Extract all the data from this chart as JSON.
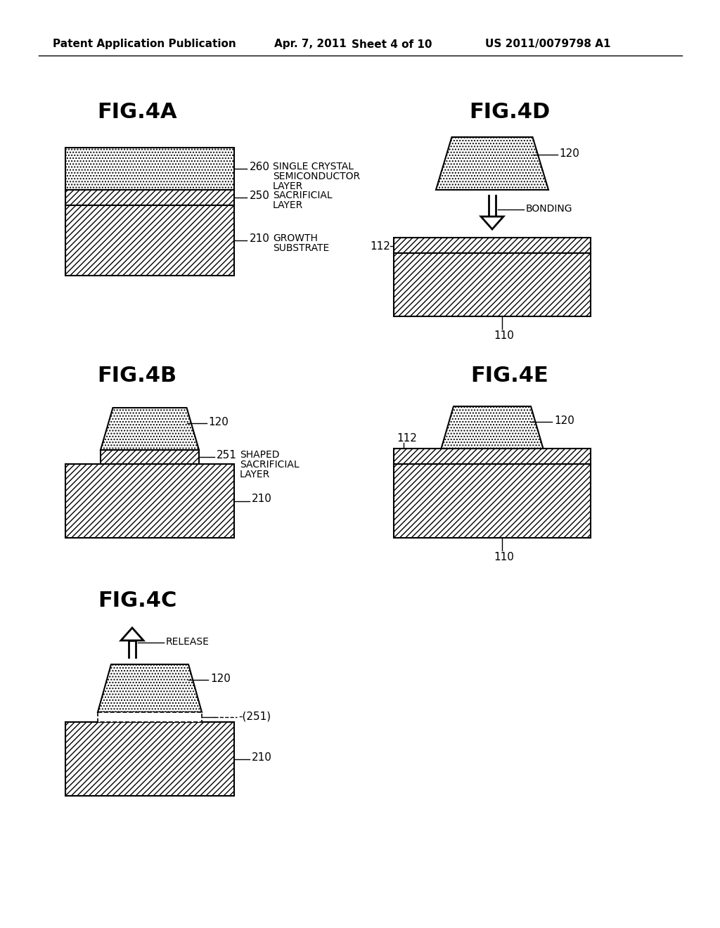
{
  "bg_color": "#ffffff",
  "header_text": "Patent Application Publication",
  "header_date": "Apr. 7, 2011",
  "header_sheet": "Sheet 4 of 10",
  "header_patent": "US 2011/0079798 A1",
  "line_color": "#000000"
}
